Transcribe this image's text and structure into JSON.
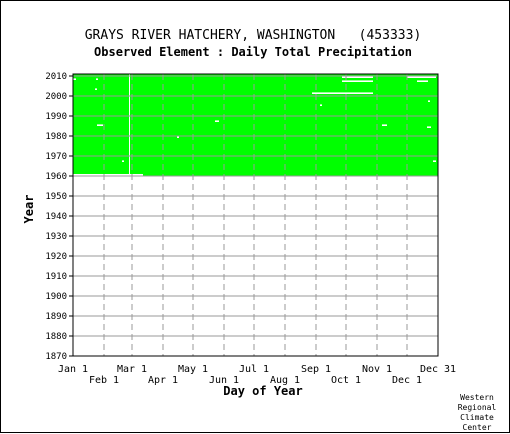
{
  "chart_data": {
    "type": "heatmap",
    "title": "GRAYS RIVER HATCHERY, WASHINGTON   (453333)",
    "subtitle": "Observed Element : Daily Total Precipitation",
    "xlabel": "Day of Year",
    "ylabel": "Year",
    "credit": "Western Regional Climate Center",
    "credit_lines": [
      "Western",
      "Regional",
      "Climate",
      "Center"
    ],
    "x_range_day_of_year": [
      1,
      365
    ],
    "ylim": [
      1870,
      2011
    ],
    "grid": true,
    "grid_style": "dashed",
    "y_ticks": [
      2010,
      2000,
      1990,
      1980,
      1970,
      1960,
      1950,
      1940,
      1930,
      1920,
      1910,
      1900,
      1890,
      1880,
      1870
    ],
    "x_ticks_upper": [
      {
        "label": "Jan 1",
        "day": 1
      },
      {
        "label": "Mar 1",
        "day": 60
      },
      {
        "label": "May 1",
        "day": 121
      },
      {
        "label": "Jul 1",
        "day": 182
      },
      {
        "label": "Sep 1",
        "day": 244
      },
      {
        "label": "Nov 1",
        "day": 305
      },
      {
        "label": "Dec 31",
        "day": 365
      }
    ],
    "x_ticks_lower": [
      {
        "label": "Feb 1",
        "day": 32
      },
      {
        "label": "Apr 1",
        "day": 91
      },
      {
        "label": "Jun 1",
        "day": 152
      },
      {
        "label": "Aug 1",
        "day": 213
      },
      {
        "label": "Oct 1",
        "day": 274
      },
      {
        "label": "Dec 1",
        "day": 335
      }
    ],
    "observed_color": "#00ff00",
    "missing_color": "#ffffff",
    "observed_block": {
      "start_year": 1961,
      "end_year": 2010,
      "start_day": 1,
      "end_day": 365
    },
    "partial_year": {
      "year": 1960,
      "start_day": 71,
      "end_day": 365
    },
    "missing_days": [
      {
        "year": 2009,
        "start_day": 270,
        "end_day": 300
      },
      {
        "year": 2009,
        "start_day": 335,
        "end_day": 363
      },
      {
        "year": 2008,
        "start_day": 1,
        "end_day": 3
      },
      {
        "year": 2008,
        "start_day": 24,
        "end_day": 25
      },
      {
        "year": 2007,
        "start_day": 270,
        "end_day": 300
      },
      {
        "year": 2007,
        "start_day": 345,
        "end_day": 355
      },
      {
        "year": 2003,
        "start_day": 23,
        "end_day": 24
      },
      {
        "year": 2001,
        "start_day": 240,
        "end_day": 300
      },
      {
        "year": 1997,
        "start_day": 356,
        "end_day": 357
      },
      {
        "year": 1995,
        "start_day": 248,
        "end_day": 249
      },
      {
        "year": 1987,
        "start_day": 143,
        "end_day": 146
      },
      {
        "year": 1985,
        "start_day": 25,
        "end_day": 30
      },
      {
        "year": 1985,
        "start_day": 310,
        "end_day": 314
      },
      {
        "year": 1984,
        "start_day": 355,
        "end_day": 358
      },
      {
        "year": 1979,
        "start_day": 105,
        "end_day": 106
      },
      {
        "year": 1967,
        "start_day": 50,
        "end_day": 51
      },
      {
        "year": 1967,
        "start_day": 361,
        "end_day": 363
      }
    ],
    "missing_columns": [
      {
        "day": 57,
        "start_year": 1961,
        "end_year": 2010
      }
    ]
  }
}
